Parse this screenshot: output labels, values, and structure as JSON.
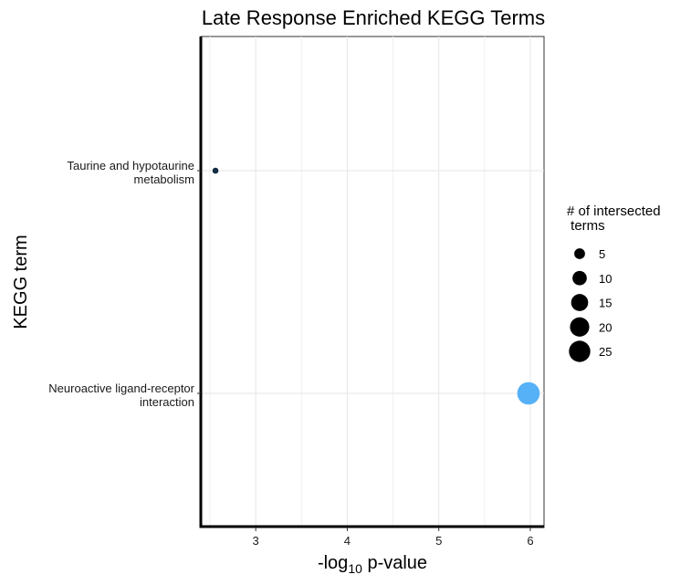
{
  "chart_data": {
    "type": "scatter",
    "title": "Late Response Enriched KEGG Terms",
    "xlabel_main": "-log",
    "xlabel_sub": "10",
    "xlabel_tail": " p-value",
    "ylabel": "KEGG term",
    "xlim": [
      2.4,
      6.15
    ],
    "x_ticks": [
      3,
      4,
      5,
      6
    ],
    "grid": true,
    "categories": [
      [
        "Taurine and hypotaurine",
        "metabolism"
      ],
      [
        "Neuroactive ligand-receptor",
        "interaction"
      ]
    ],
    "points": [
      {
        "term": "Taurine and hypotaurine metabolism",
        "x": 2.56,
        "size": 1,
        "color": "#132b43"
      },
      {
        "term": "Neuroactive ligand-receptor interaction",
        "x": 5.98,
        "size": 28,
        "color": "#56b1f7"
      }
    ],
    "legend": {
      "title": [
        "# of intersected",
        " terms"
      ],
      "placement": "right",
      "entries": [
        5,
        10,
        15,
        20,
        25
      ]
    }
  }
}
